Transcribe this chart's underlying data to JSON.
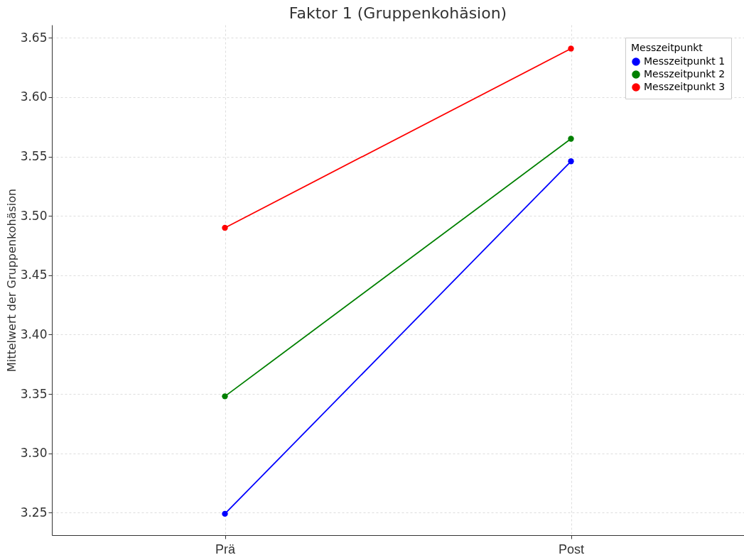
{
  "chart_data": {
    "type": "line",
    "title": "Faktor 1 (Gruppenkohäsion)",
    "ylabel": "Mittelwert der Gruppenkohäsion",
    "legend_title": "Messzeitpunkt",
    "categories": [
      "Prä",
      "Post"
    ],
    "series": [
      {
        "name": "Messzeitpunkt 1",
        "color": "#0000ff",
        "values": [
          3.249,
          3.546
        ]
      },
      {
        "name": "Messzeitpunkt 2",
        "color": "#008000",
        "values": [
          3.348,
          3.565
        ]
      },
      {
        "name": "Messzeitpunkt 3",
        "color": "#ff0000",
        "values": [
          3.49,
          3.641
        ]
      }
    ],
    "ylim": [
      3.231,
      3.661
    ],
    "yticks": [
      3.25,
      {
        "value": 3.3,
        "label": "3.30"
      },
      3.35,
      {
        "value": 3.4,
        "label": "3.40"
      },
      3.45,
      {
        "value": 3.5,
        "label": "3.50"
      },
      3.55,
      {
        "value": 3.6,
        "label": "3.60"
      },
      3.65
    ],
    "grid": true,
    "legend": "top right",
    "marker": "circle",
    "line_style": "solid"
  }
}
